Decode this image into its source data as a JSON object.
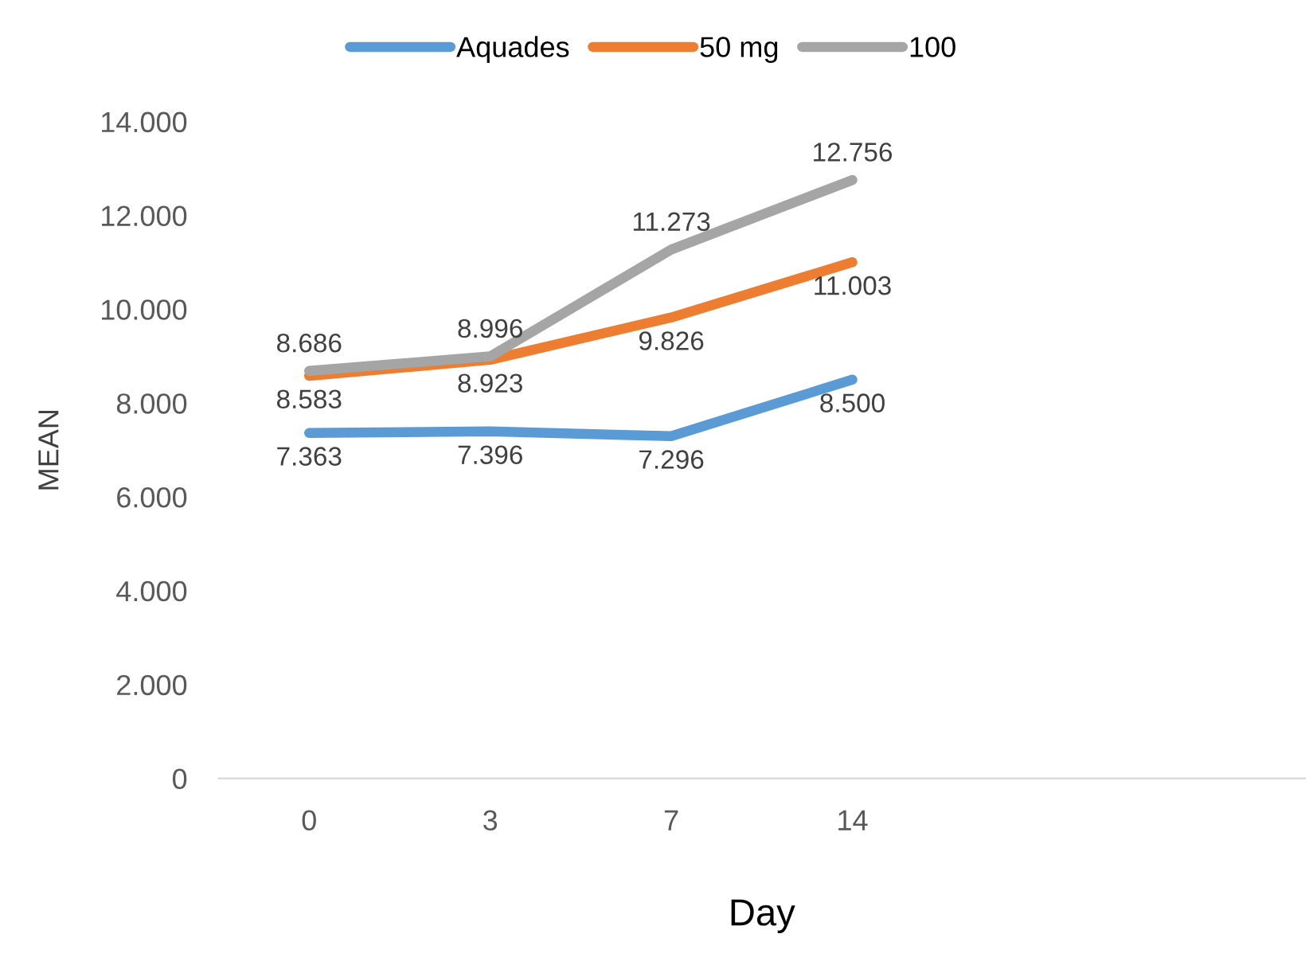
{
  "chart_data": {
    "type": "line",
    "xlabel": "Day",
    "ylabel": "MEAN",
    "categories": [
      "0",
      "3",
      "7",
      "14",
      null,
      null
    ],
    "series": [
      {
        "name": "Aquades",
        "color": "#5b9bd5",
        "values": [
          7363,
          7396,
          7296,
          8500,
          null,
          null
        ],
        "value_labels": [
          "7.363",
          "7.396",
          "7.296",
          "8.500",
          null,
          null
        ]
      },
      {
        "name": "50 mg",
        "color": "#ed7d31",
        "values": [
          8583,
          8923,
          9826,
          11003,
          null,
          null
        ],
        "value_labels": [
          "8.583",
          "8.923",
          "9.826",
          "11.003",
          null,
          null
        ]
      },
      {
        "name": "100",
        "color": "#a5a5a5",
        "values": [
          8686,
          8996,
          11273,
          12756,
          null,
          null
        ],
        "value_labels": [
          "8.686",
          "8.996",
          "11.273",
          "12.756",
          null,
          null
        ]
      }
    ],
    "ylim": [
      0,
      14000
    ],
    "yticks": [
      {
        "value": 0,
        "label": "0"
      },
      {
        "value": 2000,
        "label": "2.000"
      },
      {
        "value": 4000,
        "label": "4.000"
      },
      {
        "value": 6000,
        "label": "6.000"
      },
      {
        "value": 8000,
        "label": "8.000"
      },
      {
        "value": 10000,
        "label": "10.000"
      },
      {
        "value": 12000,
        "label": "12.000"
      },
      {
        "value": 14000,
        "label": "14.000"
      }
    ],
    "grid": false,
    "legend": "top",
    "marker": "none",
    "line_style": "solid"
  }
}
